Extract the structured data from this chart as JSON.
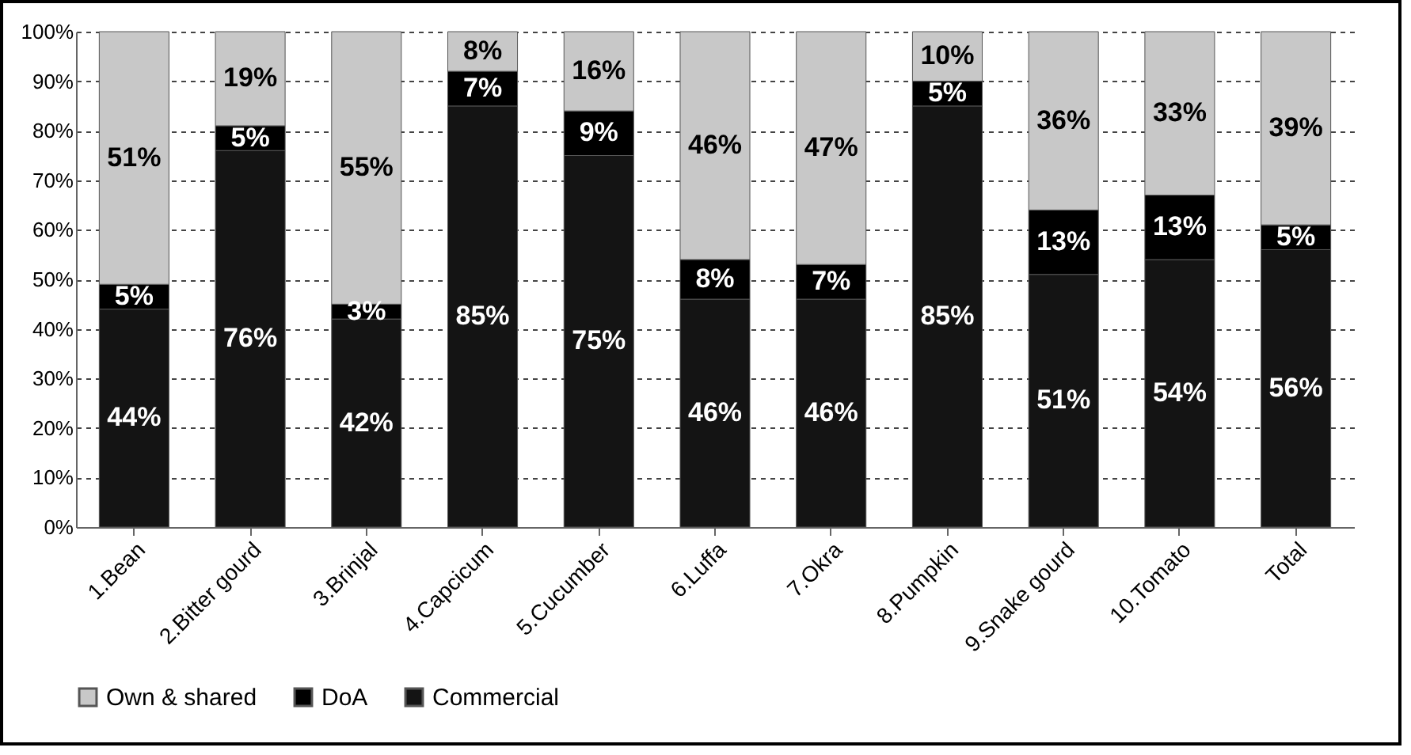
{
  "chart_data": {
    "type": "bar",
    "stacked": true,
    "categories": [
      "1.Bean",
      "2.Bitter gourd",
      "3.Brinjal",
      "4.Capcicum",
      "5.Cucumber",
      "6.Luffa",
      "7.Okra",
      "8.Pumpkin",
      "9.Snake gourd",
      "10.Tomato",
      "Total"
    ],
    "series": [
      {
        "name": "Commercial",
        "color": "#141414",
        "values": [
          44,
          76,
          42,
          85,
          75,
          46,
          46,
          85,
          51,
          54,
          56
        ],
        "value_labels": [
          "44%",
          "76%",
          "42%",
          "85%",
          "75%",
          "46%",
          "46%",
          "85%",
          "51%",
          "54%",
          "56%"
        ]
      },
      {
        "name": "DoA",
        "color": "#000000",
        "values": [
          5,
          5,
          3,
          7,
          9,
          8,
          7,
          5,
          13,
          13,
          5
        ],
        "value_labels": [
          "5%",
          "5%",
          "3%",
          "7%",
          "9%",
          "8%",
          "7%",
          "5%",
          "13%",
          "13%",
          "5%"
        ]
      },
      {
        "name": "Own & shared",
        "color": "#c8c8c8",
        "values": [
          51,
          19,
          55,
          8,
          16,
          46,
          47,
          10,
          36,
          33,
          39
        ],
        "value_labels": [
          "51%",
          "19%",
          "55%",
          "8%",
          "16%",
          "46%",
          "47%",
          "10%",
          "36%",
          "33%",
          "39%"
        ]
      }
    ],
    "ylim": [
      0,
      100
    ],
    "yticks": [
      {
        "value": 0,
        "label": "0%"
      },
      {
        "value": 10,
        "label": "10%"
      },
      {
        "value": 20,
        "label": "20%"
      },
      {
        "value": 30,
        "label": "30%"
      },
      {
        "value": 40,
        "label": "40%"
      },
      {
        "value": 50,
        "label": "50%"
      },
      {
        "value": 60,
        "label": "60%"
      },
      {
        "value": 70,
        "label": "70%"
      },
      {
        "value": 80,
        "label": "80%"
      },
      {
        "value": 90,
        "label": "90%"
      },
      {
        "value": 100,
        "label": "100%"
      }
    ],
    "grid": "y",
    "legend": "bottom"
  }
}
